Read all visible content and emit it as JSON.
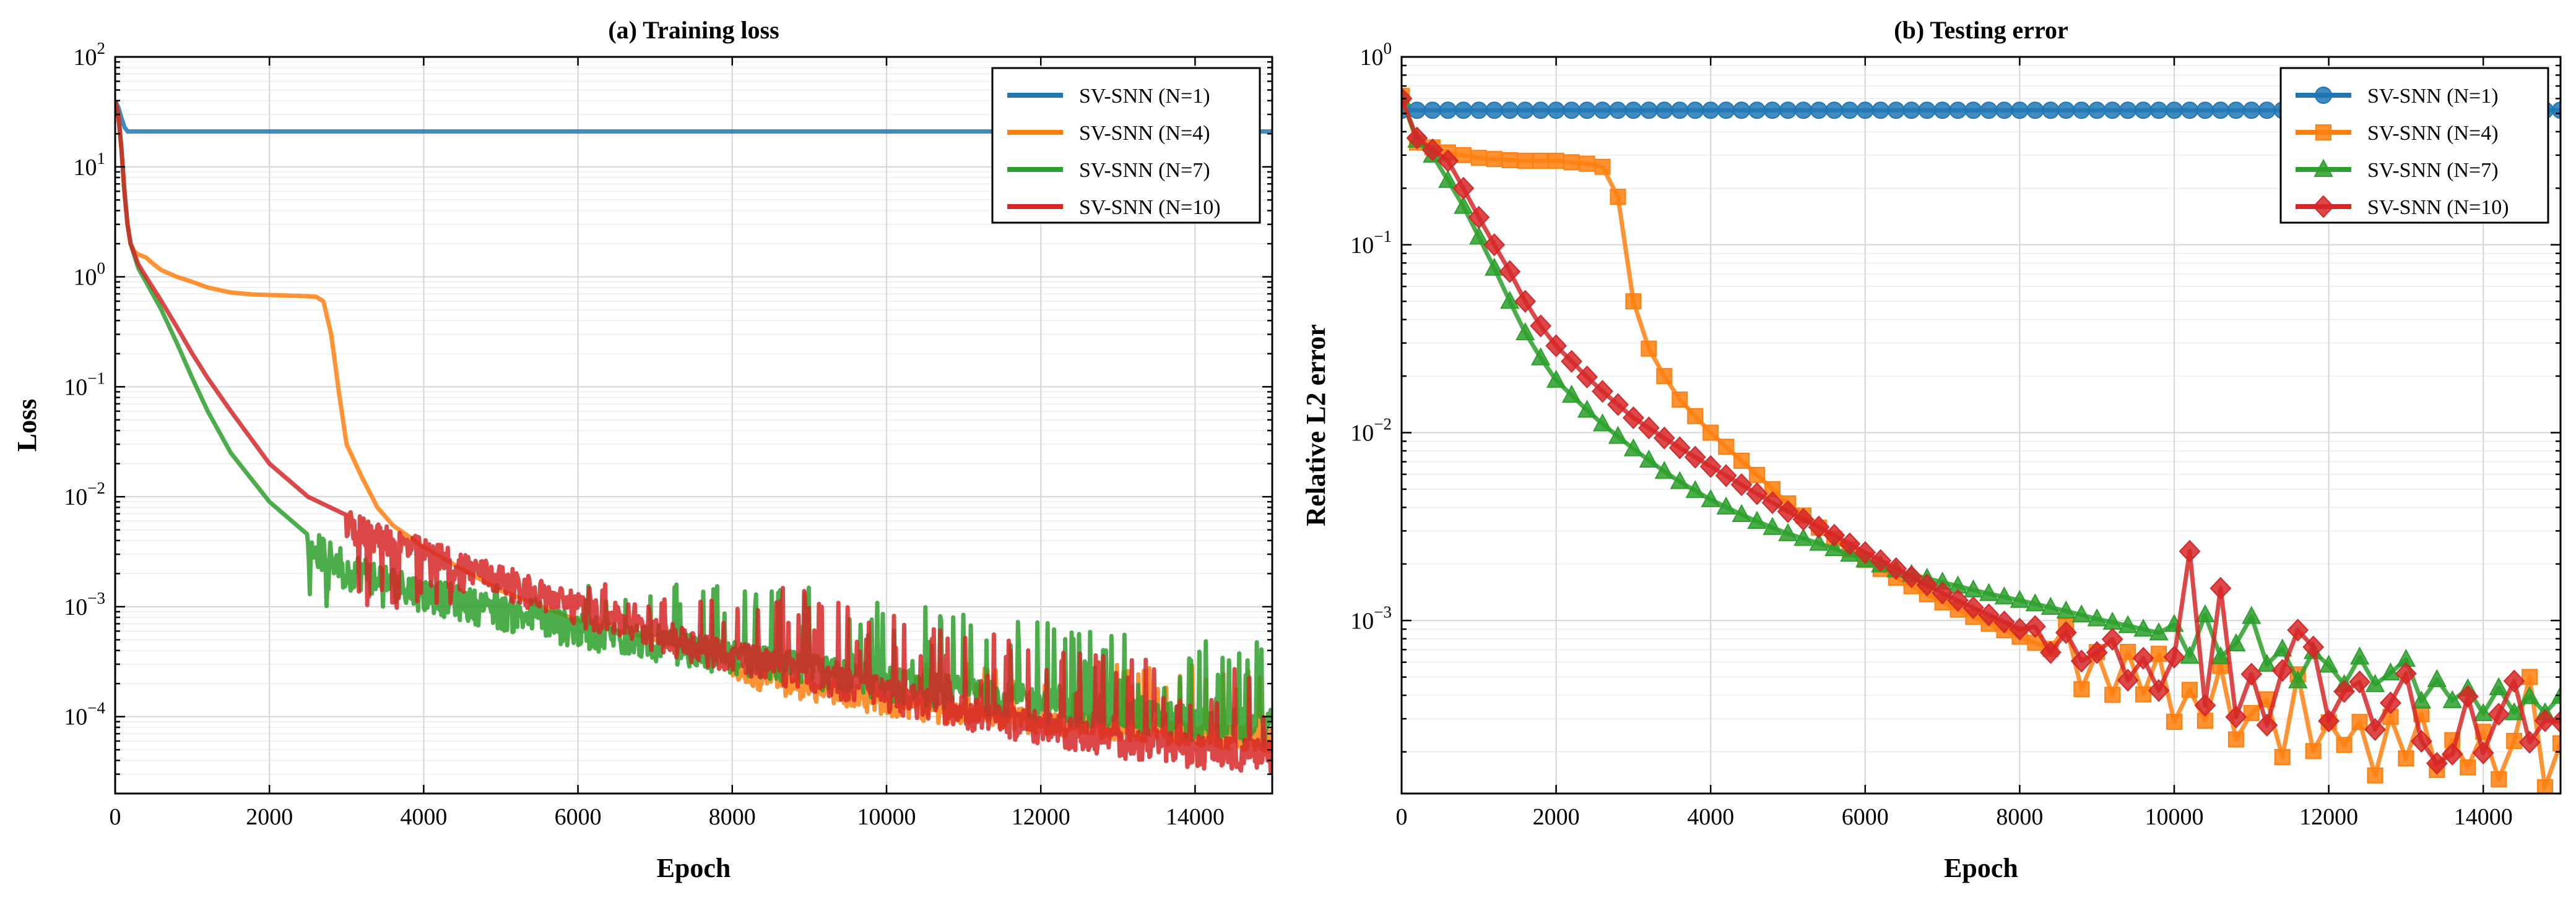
{
  "chart_data": [
    {
      "type": "line",
      "title": "(a) Training loss",
      "xlabel": "Epoch",
      "ylabel": "Loss",
      "yscale": "log",
      "xlim": [
        0,
        15000
      ],
      "ylim": [
        2e-05,
        100
      ],
      "xticks": [
        0,
        2000,
        4000,
        6000,
        8000,
        10000,
        12000,
        14000
      ],
      "xtick_labels": [
        "0",
        "2000",
        "4000",
        "6000",
        "8000",
        "10000",
        "12000",
        "14000"
      ],
      "yticks": [
        -4,
        -3,
        -2,
        -1,
        0,
        1,
        2
      ],
      "ytick_base": "10",
      "ytick_exps": [
        "−4",
        "−3",
        "−2",
        "−1",
        "0",
        "1",
        "2"
      ],
      "grid": true,
      "legend_position": "top-right",
      "series": [
        {
          "name": "SV-SNN (N=1)",
          "color": "#1f77b4",
          "x": [
            0,
            40,
            80,
            120,
            160,
            200,
            300,
            15000
          ],
          "y": [
            40,
            35,
            28,
            23,
            21,
            21,
            21,
            21
          ]
        },
        {
          "name": "SV-SNN (N=4)",
          "color": "#ff7f0e",
          "x": [
            0,
            40,
            80,
            120,
            160,
            200,
            250,
            300,
            400,
            500,
            600,
            800,
            1000,
            1200,
            1500,
            1800,
            2100,
            2400,
            2600,
            2700,
            2800,
            2900,
            3000,
            3200,
            3400,
            3600,
            4000,
            4400,
            5000,
            6000,
            7000,
            8000,
            9000,
            10000,
            11000,
            12000,
            13000,
            14000,
            15000
          ],
          "y": [
            40,
            30,
            15,
            6,
            3,
            2,
            1.7,
            1.6,
            1.5,
            1.3,
            1.15,
            1.0,
            0.9,
            0.8,
            0.72,
            0.69,
            0.68,
            0.67,
            0.66,
            0.6,
            0.3,
            0.09,
            0.03,
            0.015,
            0.008,
            0.0055,
            0.0035,
            0.0024,
            0.0014,
            0.00075,
            0.0005,
            0.00033,
            0.00023,
            0.00017,
            0.000135,
            0.000115,
            0.0001,
            8.8e-05,
            8e-05
          ],
          "noise": {
            "start": 8000,
            "low": 0.6,
            "high": 1.0,
            "spike_max": 0.0003
          }
        },
        {
          "name": "SV-SNN (N=7)",
          "color": "#2ca02c",
          "x": [
            0,
            40,
            80,
            120,
            160,
            200,
            300,
            400,
            600,
            800,
            1000,
            1200,
            1500,
            2000,
            2500,
            3000,
            4000,
            5000,
            6000,
            7000,
            8000,
            9000,
            10000,
            11000,
            12000,
            13000,
            14000,
            15000
          ],
          "y": [
            40,
            30,
            15,
            6,
            3,
            2,
            1.2,
            0.9,
            0.5,
            0.25,
            0.12,
            0.06,
            0.025,
            0.009,
            0.0045,
            0.0028,
            0.0016,
            0.0011,
            0.00075,
            0.00055,
            0.00042,
            0.00032,
            0.00025,
            0.0002,
            0.00016,
            0.00013,
            0.00011,
            0.0001
          ],
          "noise": {
            "start": 2500,
            "low": 0.55,
            "high": 1.15,
            "spike_max": 0.0016
          }
        },
        {
          "name": "SV-SNN (N=10)",
          "color": "#d62728",
          "x": [
            0,
            40,
            80,
            120,
            160,
            200,
            300,
            400,
            600,
            800,
            1000,
            1200,
            1500,
            2000,
            2500,
            3000,
            4000,
            5000,
            6000,
            7000,
            8000,
            9000,
            10000,
            11000,
            12000,
            13000,
            14000,
            15000
          ],
          "y": [
            40,
            30,
            15,
            6,
            3,
            2,
            1.3,
            1.0,
            0.6,
            0.35,
            0.2,
            0.12,
            0.06,
            0.02,
            0.01,
            0.0068,
            0.0038,
            0.0022,
            0.0012,
            0.0007,
            0.00045,
            0.0003,
            0.0002,
            0.00014,
            0.0001,
            7.5e-05,
            6.2e-05,
            5.5e-05
          ],
          "noise": {
            "start": 3000,
            "low": 0.55,
            "high": 1.1,
            "spike_max": 0.0016
          }
        }
      ]
    },
    {
      "type": "line",
      "title": "(b) Testing error",
      "xlabel": "Epoch",
      "ylabel": "Relative L2 error",
      "yscale": "log",
      "xlim": [
        0,
        15000
      ],
      "ylim": [
        0.00012,
        1
      ],
      "xticks": [
        0,
        2000,
        4000,
        6000,
        8000,
        10000,
        12000,
        14000
      ],
      "xtick_labels": [
        "0",
        "2000",
        "4000",
        "6000",
        "8000",
        "10000",
        "12000",
        "14000"
      ],
      "yticks": [
        -3,
        -2,
        -1,
        0
      ],
      "ytick_base": "10",
      "ytick_exps": [
        "−3",
        "−2",
        "−1",
        "0"
      ],
      "grid": true,
      "legend_position": "top-right",
      "series": [
        {
          "name": "SV-SNN (N=1)",
          "color": "#1f77b4",
          "marker": "circle",
          "x": [
            0,
            15000
          ],
          "y": [
            0.52,
            0.52
          ],
          "marker_step": 200
        },
        {
          "name": "SV-SNN (N=4)",
          "color": "#ff7f0e",
          "marker": "square",
          "x": [
            0,
            200,
            400,
            600,
            800,
            1000,
            1500,
            2000,
            2400,
            2600,
            2800,
            2900,
            3000,
            3200,
            3400,
            3600,
            4000,
            4500,
            5000,
            5500,
            6000,
            6500,
            7000,
            7500,
            8000,
            8500,
            9000,
            9500,
            10000,
            10500,
            11000,
            11500,
            12000,
            12500,
            13000,
            13500,
            14000,
            14500,
            15000
          ],
          "y": [
            0.62,
            0.35,
            0.33,
            0.31,
            0.3,
            0.29,
            0.28,
            0.28,
            0.27,
            0.26,
            0.18,
            0.1,
            0.05,
            0.028,
            0.02,
            0.015,
            0.01,
            0.0065,
            0.0042,
            0.0029,
            0.0021,
            0.0016,
            0.00125,
            0.001,
            0.00082,
            0.00068,
            0.00057,
            0.00048,
            0.00041,
            0.00035,
            0.0003,
            0.00027,
            0.00025,
            0.00023,
            0.00022,
            0.00021,
            0.0002,
            0.00019,
            0.00018
          ],
          "marker_step": 200,
          "jitter": {
            "start": 8500,
            "amp": 0.35,
            "pattern": [
              1,
              -1,
              0.5,
              -0.8,
              0.9,
              -0.4,
              1.2,
              -1,
              0.3,
              -0.6,
              1.5,
              -0.9,
              0.2,
              0.8,
              -1.1,
              1.9,
              -0.7,
              0.4,
              -0.3,
              0.6,
              -1.2,
              0.9,
              -0.5,
              1.1,
              -0.8,
              0.3,
              -0.6,
              0.7,
              -0.9,
              0.5,
              2.8,
              -1.0,
              0.6,
              -0.4,
              0.2
            ]
          }
        },
        {
          "name": "SV-SNN (N=7)",
          "color": "#2ca02c",
          "marker": "triangle",
          "x": [
            0,
            200,
            400,
            600,
            800,
            1000,
            1200,
            1400,
            1600,
            1800,
            2000,
            2500,
            3000,
            3500,
            4000,
            4500,
            5000,
            5500,
            6000,
            6500,
            7000,
            7500,
            8000,
            8500,
            9000,
            9500,
            10000,
            10500,
            11000,
            11500,
            12000,
            12500,
            13000,
            13500,
            14000,
            14500,
            15000
          ],
          "y": [
            0.6,
            0.36,
            0.3,
            0.22,
            0.16,
            0.11,
            0.075,
            0.05,
            0.034,
            0.025,
            0.019,
            0.012,
            0.0082,
            0.0058,
            0.0044,
            0.0035,
            0.0029,
            0.0025,
            0.0021,
            0.0018,
            0.0016,
            0.00142,
            0.00128,
            0.00115,
            0.00102,
            0.00092,
            0.00082,
            0.00074,
            0.00067,
            0.00061,
            0.00055,
            0.0005,
            0.00046,
            0.00042,
            0.00039,
            0.00036,
            0.00034
          ],
          "marker_step": 200,
          "jitter": {
            "start": 10000,
            "amp": 0.25,
            "pattern": [
              0.6,
              -0.8,
              1.4,
              -0.5,
              0.3,
              1.8,
              -0.4,
              0.5,
              -0.9,
              0.7,
              0.2,
              -0.6,
              0.9,
              -0.3,
              0.4,
              1.2,
              -0.7,
              0.5,
              -0.4,
              0.3,
              -0.8,
              0.6,
              -0.5,
              0.4,
              -0.3
            ]
          }
        },
        {
          "name": "SV-SNN (N=10)",
          "color": "#d62728",
          "marker": "diamond",
          "x": [
            0,
            200,
            400,
            600,
            800,
            1000,
            1200,
            1400,
            1600,
            1800,
            2000,
            2500,
            3000,
            3500,
            4000,
            4500,
            5000,
            5500,
            6000,
            6500,
            7000,
            7500,
            8000,
            8500,
            9000,
            9500,
            10000,
            10500,
            11000,
            11500,
            12000,
            12500,
            13000,
            13500,
            14000,
            14500,
            15000
          ],
          "y": [
            0.6,
            0.37,
            0.32,
            0.28,
            0.2,
            0.14,
            0.1,
            0.072,
            0.05,
            0.037,
            0.029,
            0.018,
            0.012,
            0.0088,
            0.0066,
            0.005,
            0.0038,
            0.003,
            0.0023,
            0.0018,
            0.0014,
            0.00112,
            0.0009,
            0.00075,
            0.00063,
            0.00056,
            0.0005,
            0.00046,
            0.00042,
            0.00039,
            0.00036,
            0.00034,
            0.00032,
            0.0003,
            0.00028,
            0.00027,
            0.00026
          ],
          "marker_step": 200,
          "jitter": {
            "start": 8200,
            "amp": 0.35,
            "pattern": [
              0.3,
              -0.4,
              0.5,
              -0.3,
              0.2,
              0.8,
              -0.5,
              0.4,
              -0.6,
              0.7,
              4.5,
              -0.8,
              3.4,
              -1.0,
              0.6,
              -1.1,
              0.9,
              2.4,
              1.9,
              -0.6,
              0.5,
              0.9,
              -0.7,
              0.3,
              1.4,
              -0.9,
              -1.6,
              -1.2,
              0.9,
              -1.0,
              0.4,
              1.6,
              -0.5,
              0.3
            ]
          }
        }
      ]
    }
  ]
}
